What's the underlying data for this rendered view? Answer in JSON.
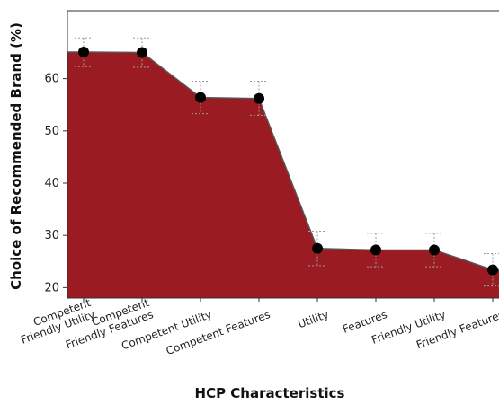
{
  "chart_data": {
    "type": "area",
    "xlabel": "HCP Characteristics",
    "ylabel": "Choice of Recommended Brand (%)",
    "ylim": [
      18,
      73
    ],
    "yticks": [
      20,
      30,
      40,
      50,
      60
    ],
    "grid": false,
    "categories": [
      "Competent Friendly Utility",
      "Competent Friendly Features",
      "Competent Utility",
      "Competent Features",
      "Utility",
      "Features",
      "Friendly Utility",
      "Friendly Features"
    ],
    "category_lines": [
      [
        "Competent",
        "Friendly Utility"
      ],
      [
        "Competent",
        "Friendly Features"
      ],
      [
        "Competent Utility"
      ],
      [
        "Competent Features"
      ],
      [
        "Utility"
      ],
      [
        "Features"
      ],
      [
        "Friendly Utility"
      ],
      [
        "Friendly Features"
      ]
    ],
    "values": [
      65.1,
      65.0,
      56.4,
      56.2,
      27.5,
      27.2,
      27.2,
      23.4
    ],
    "error_low": [
      62.3,
      62.2,
      53.3,
      53.0,
      24.2,
      24.0,
      24.0,
      20.3
    ],
    "error_high": [
      67.8,
      67.8,
      59.5,
      59.5,
      30.8,
      30.4,
      30.4,
      26.5
    ],
    "colors": {
      "fill": "#9b1b22",
      "line": "#555555",
      "marker": "#000000",
      "error": "#9a9a9a"
    }
  }
}
